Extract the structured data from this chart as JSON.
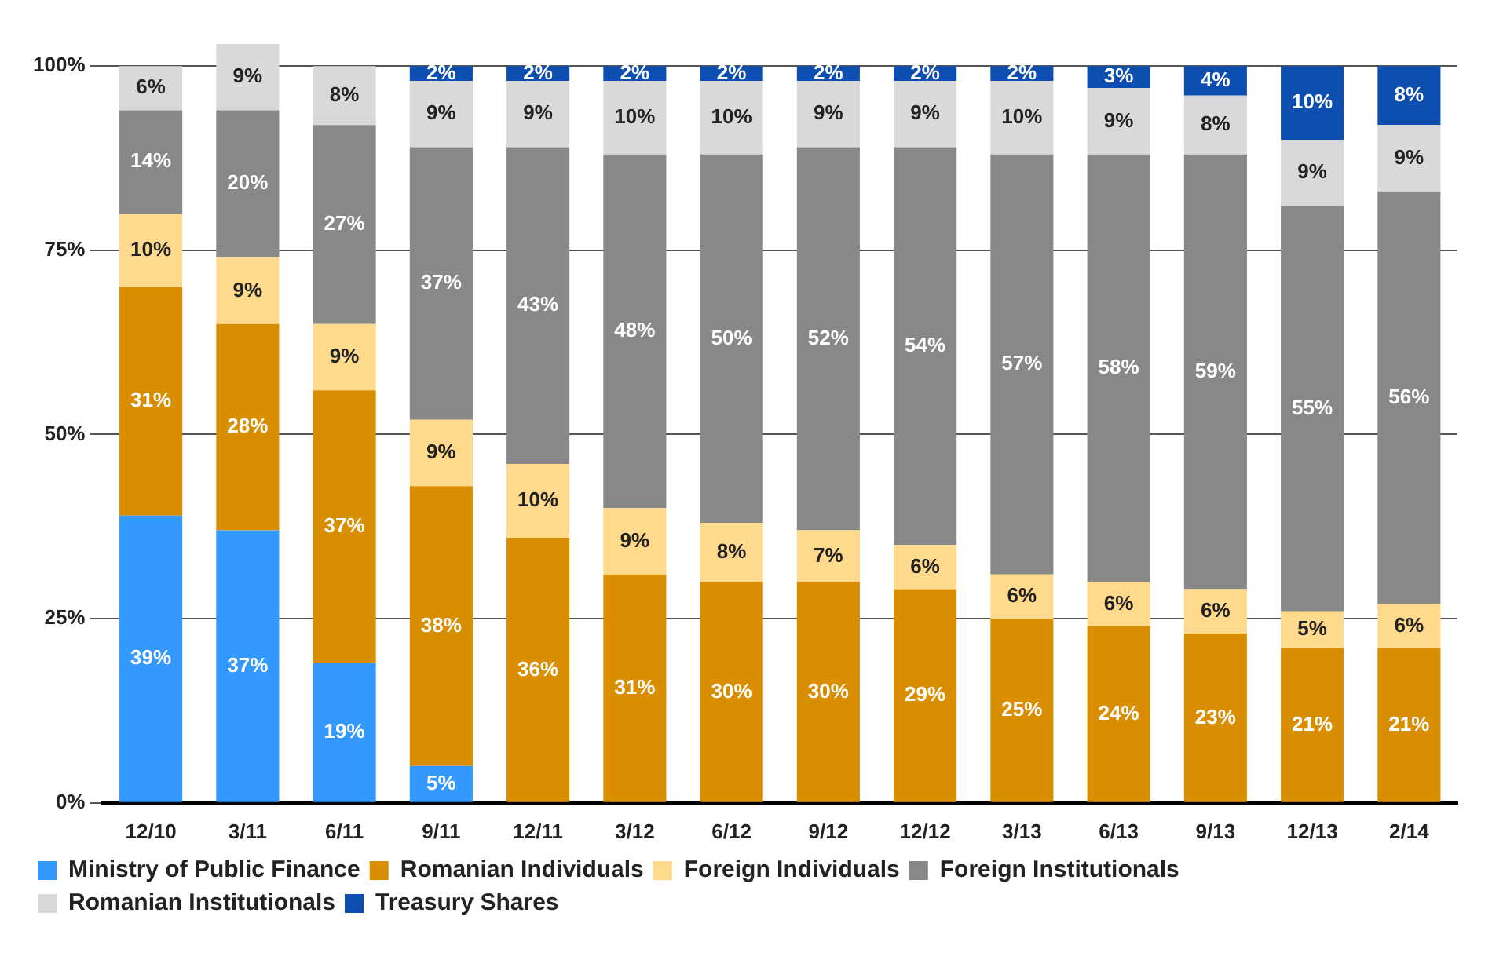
{
  "chart_data": {
    "type": "bar",
    "stacked": true,
    "categories": [
      "12/10",
      "3/11",
      "6/11",
      "9/11",
      "12/11",
      "3/12",
      "6/12",
      "9/12",
      "12/12",
      "3/13",
      "6/13",
      "9/13",
      "12/13",
      "2/14"
    ],
    "series": [
      {
        "name": "Ministry of Public Finance",
        "color": "#3399ff",
        "values": [
          39,
          37,
          19,
          5,
          null,
          null,
          null,
          null,
          null,
          null,
          null,
          null,
          null,
          null
        ],
        "value_labels": [
          "39%",
          "37%",
          "19%",
          "5%",
          null,
          null,
          null,
          null,
          null,
          null,
          null,
          null,
          null,
          null
        ]
      },
      {
        "name": "Romanian Individuals",
        "color": "#d98e00",
        "values": [
          31,
          28,
          37,
          38,
          36,
          31,
          30,
          30,
          29,
          25,
          24,
          23,
          21,
          21
        ],
        "value_labels": [
          "31%",
          "28%",
          "37%",
          "38%",
          "36%",
          "31%",
          "30%",
          "30%",
          "29%",
          "25%",
          "24%",
          "23%",
          "21%",
          "21%"
        ]
      },
      {
        "name": "Foreign Individuals",
        "color": "#ffd98c",
        "values": [
          10,
          9,
          9,
          9,
          10,
          9,
          8,
          7,
          6,
          6,
          6,
          6,
          5,
          6
        ],
        "value_labels": [
          "10%",
          "9%",
          "9%",
          "9%",
          "10%",
          "9%",
          "8%",
          "7%",
          "6%",
          "6%",
          "6%",
          "6%",
          "5%",
          "6%"
        ]
      },
      {
        "name": "Foreign Institutionals",
        "color": "#888888",
        "values": [
          14,
          20,
          27,
          37,
          43,
          48,
          50,
          52,
          54,
          57,
          58,
          59,
          55,
          56
        ],
        "value_labels": [
          "14%",
          "20%",
          "27%",
          "37%",
          "43%",
          "48%",
          "50%",
          "52%",
          "54%",
          "57%",
          "58%",
          "59%",
          "55%",
          "56%"
        ]
      },
      {
        "name": "Romanian Institutionals",
        "color": "#d9d9d9",
        "values": [
          6,
          9,
          8,
          9,
          9,
          10,
          10,
          9,
          9,
          10,
          9,
          8,
          9,
          9
        ],
        "value_labels": [
          "6%",
          "9%",
          "8%",
          "9%",
          "9%",
          "10%",
          "10%",
          "9%",
          "9%",
          "10%",
          "9%",
          "8%",
          "9%",
          "9%"
        ]
      },
      {
        "name": "Treasury Shares",
        "color": "#0d4fb0",
        "values": [
          null,
          null,
          null,
          2,
          2,
          2,
          2,
          2,
          2,
          2,
          3,
          4,
          10,
          8
        ],
        "value_labels": [
          null,
          null,
          null,
          "2%",
          "2%",
          "2%",
          "2%",
          "2%",
          "2%",
          "2%",
          "3%",
          "4%",
          "10%",
          "8%"
        ]
      }
    ],
    "ylim": [
      0,
      103
    ],
    "yticks": [
      {
        "value": 0,
        "label": "0%"
      },
      {
        "value": 25,
        "label": "25%"
      },
      {
        "value": 50,
        "label": "50%"
      },
      {
        "value": 75,
        "label": "75%"
      },
      {
        "value": 100,
        "label": "100%"
      }
    ],
    "grid": "y",
    "legend": "bottom"
  }
}
